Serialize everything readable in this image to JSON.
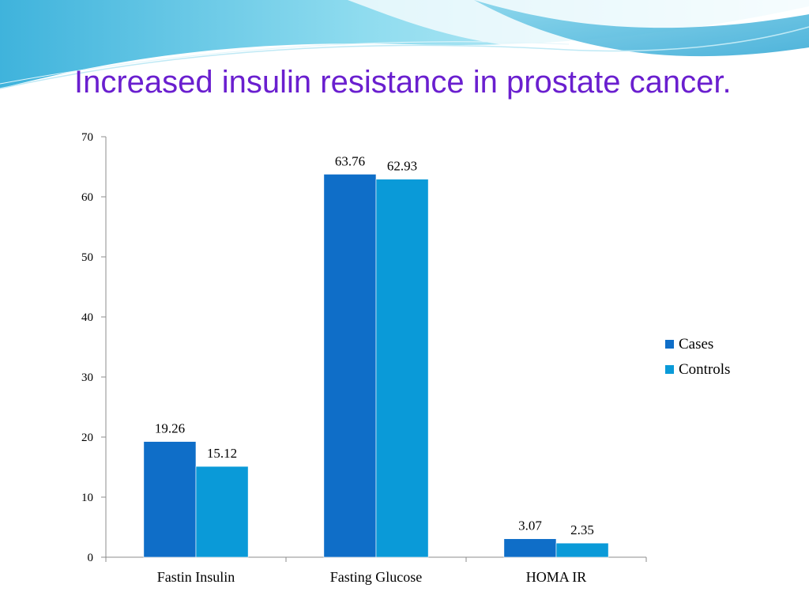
{
  "slide": {
    "title": "Increased insulin resistance in prostate cancer.",
    "title_color": "#6a1fcf"
  },
  "chart_data": {
    "type": "bar",
    "categories": [
      "Fastin Insulin",
      "Fasting Glucose",
      "HOMA IR"
    ],
    "series": [
      {
        "name": "Cases",
        "values": [
          19.26,
          63.76,
          3.07
        ],
        "labels": [
          "19.26",
          "63.76",
          "3.07"
        ],
        "color": "#0f6ec8"
      },
      {
        "name": "Controls",
        "values": [
          15.12,
          62.93,
          2.35
        ],
        "labels": [
          "15.12",
          "62.93",
          "2.35"
        ],
        "color": "#0a9ad8"
      }
    ],
    "ylim": [
      0,
      70
    ],
    "y_ticks": [
      "0",
      "10",
      "20",
      "30",
      "40",
      "50",
      "60",
      "70"
    ],
    "grid": false,
    "legend_position": "right",
    "xlabel": "",
    "ylabel": ""
  }
}
